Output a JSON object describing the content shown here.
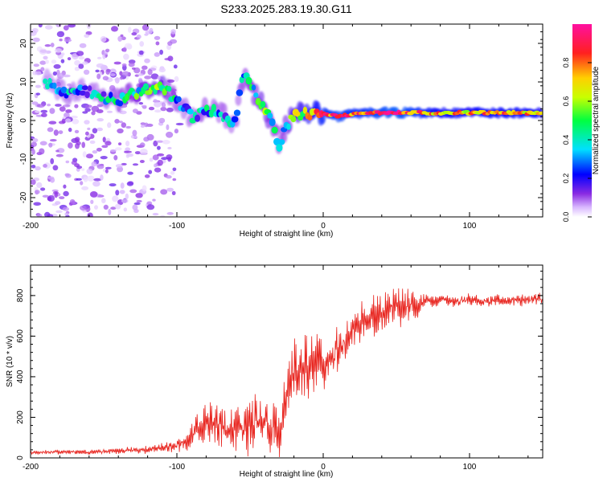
{
  "title": "S233.2025.283.19.30.G11",
  "chart_data": [
    {
      "type": "heatmap",
      "title": "S233.2025.283.19.30.G11",
      "xlabel": "Height of straight line (km)",
      "ylabel": "Frequency (Hz)",
      "xlim": [
        -200,
        150
      ],
      "ylim": [
        -25,
        25
      ],
      "xticks": [
        -200,
        -100,
        0,
        100
      ],
      "xtick_labels": [
        "-200",
        "-100",
        "0",
        "100"
      ],
      "yticks": [
        -20,
        -10,
        0,
        10,
        20
      ],
      "ytick_labels": [
        "-20",
        "-10",
        "0",
        "10",
        "20"
      ],
      "colorbar": {
        "label": "Normalized spectral amplitude",
        "range": [
          0,
          1
        ],
        "ticks": [
          0.0,
          0.2,
          0.4,
          0.6,
          0.8
        ],
        "tick_labels": [
          "0.0",
          "0.2",
          "0.4",
          "0.6",
          "0.8"
        ],
        "colormap": "rainbow (white-violet-blue-cyan-green-yellow-red-magenta)"
      },
      "ridge": {
        "description": "dominant spectral ridge (frequency vs height)",
        "x": [
          -185,
          -175,
          -165,
          -150,
          -140,
          -130,
          -120,
          -110,
          -100,
          -90,
          -80,
          -70,
          -60,
          -55,
          -50,
          -45,
          -40,
          -35,
          -30,
          -25,
          -20,
          -15,
          -10,
          0,
          10,
          25,
          50,
          75,
          100,
          125,
          150
        ],
        "y": [
          10,
          6,
          8,
          6,
          5,
          7,
          8,
          9,
          5,
          1,
          3,
          2,
          -1,
          12,
          9,
          6,
          3,
          -1,
          -6,
          -1,
          1,
          2,
          2,
          2,
          1,
          2,
          2,
          2,
          2,
          2,
          2
        ],
        "amplitude": [
          0.25,
          0.3,
          0.25,
          0.3,
          0.35,
          0.4,
          0.45,
          0.5,
          0.3,
          0.3,
          0.35,
          0.3,
          0.3,
          0.35,
          0.4,
          0.45,
          0.5,
          0.4,
          0.35,
          0.45,
          0.55,
          0.6,
          0.65,
          0.8,
          0.85,
          0.8,
          0.9,
          0.75,
          0.7,
          0.75,
          0.7
        ]
      },
      "background_noise": "sparse low-amplitude (0.0-0.15) speckles for heights below about -100 km across all frequencies"
    },
    {
      "type": "line",
      "xlabel": "Height of straight line (km)",
      "ylabel": "SNR (10 * v/v)",
      "xlim": [
        -200,
        150
      ],
      "ylim": [
        0,
        950
      ],
      "xticks": [
        -200,
        -100,
        0,
        100
      ],
      "xtick_labels": [
        "-200",
        "-100",
        "0",
        "100"
      ],
      "yticks": [
        0,
        200,
        400,
        600,
        800
      ],
      "ytick_labels": [
        "0",
        "200",
        "400",
        "600",
        "800"
      ],
      "series": [
        {
          "name": "SNR",
          "color": "#e8251f",
          "x": [
            -200,
            -180,
            -160,
            -140,
            -120,
            -110,
            -100,
            -95,
            -90,
            -85,
            -80,
            -75,
            -70,
            -65,
            -60,
            -55,
            -50,
            -45,
            -40,
            -35,
            -30,
            -25,
            -20,
            -15,
            -10,
            -5,
            0,
            5,
            10,
            15,
            20,
            25,
            30,
            35,
            40,
            45,
            50,
            55,
            60,
            65,
            70,
            75,
            80,
            90,
            100,
            110,
            120,
            130,
            140,
            150
          ],
          "y": [
            25,
            30,
            28,
            35,
            40,
            50,
            60,
            80,
            110,
            150,
            170,
            165,
            160,
            150,
            160,
            140,
            150,
            170,
            180,
            150,
            120,
            300,
            400,
            470,
            420,
            480,
            450,
            480,
            520,
            580,
            620,
            660,
            680,
            700,
            720,
            750,
            740,
            760,
            760,
            750,
            780,
            770,
            780,
            770,
            780,
            770,
            780,
            775,
            780,
            785
          ],
          "fluctuation": [
            8,
            12,
            12,
            15,
            20,
            25,
            40,
            55,
            70,
            90,
            100,
            110,
            120,
            110,
            130,
            120,
            140,
            150,
            150,
            140,
            130,
            180,
            200,
            180,
            160,
            150,
            140,
            130,
            120,
            110,
            100,
            100,
            110,
            120,
            130,
            130,
            130,
            120,
            100,
            70,
            40,
            30,
            30,
            30,
            30,
            30,
            30,
            30,
            30,
            30
          ]
        }
      ]
    }
  ]
}
